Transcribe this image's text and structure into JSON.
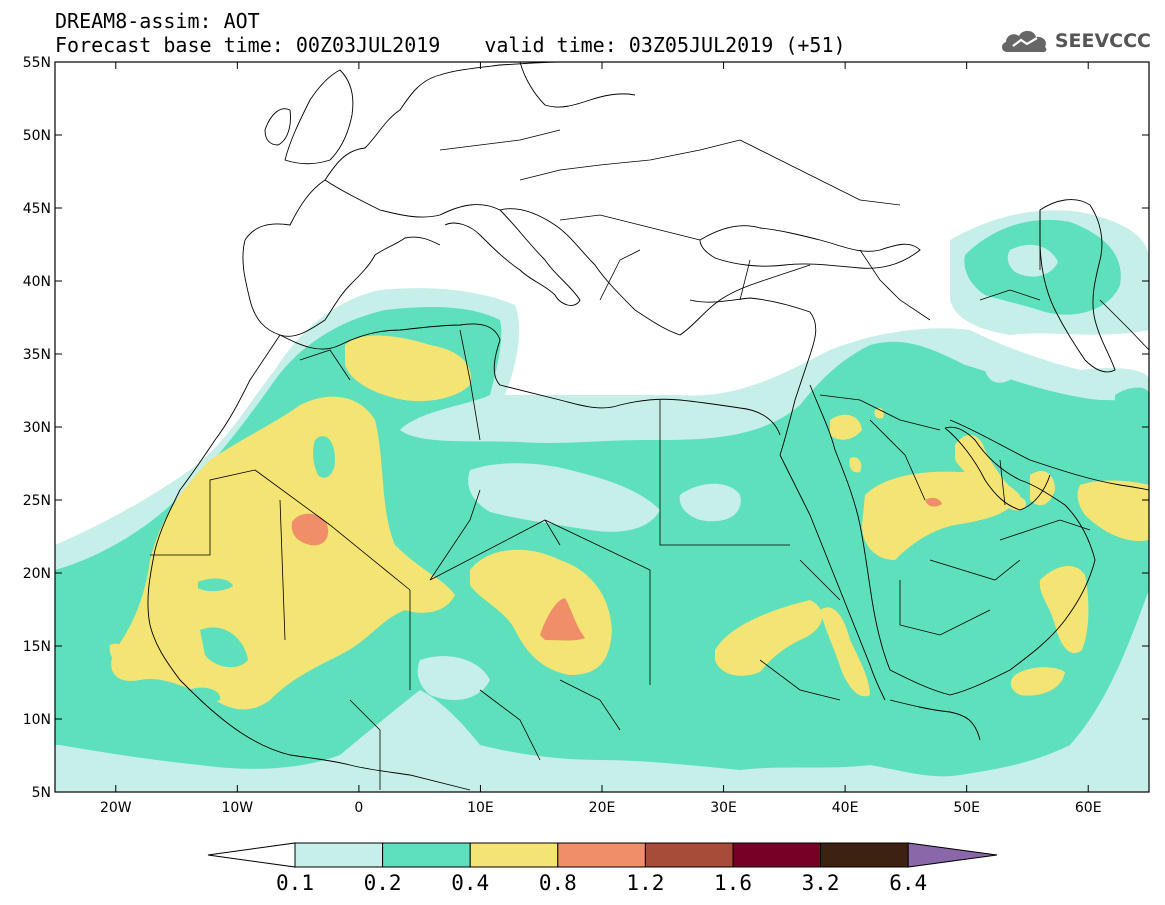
{
  "header": {
    "title_line1": "DREAM8-assim: AOT",
    "base_time": "Forecast base time: 00Z03JUL2019",
    "valid_time": "valid time: 03Z05JUL2019 (+51)",
    "logo_text": "SEEVCCC",
    "logo_icon": "cloud-icon"
  },
  "map": {
    "lon_range": [
      -25,
      65
    ],
    "lat_range": [
      5,
      55
    ],
    "lon_ticks": [
      {
        "value": -20,
        "label": "20W"
      },
      {
        "value": -10,
        "label": "10W"
      },
      {
        "value": 0,
        "label": "0"
      },
      {
        "value": 10,
        "label": "10E"
      },
      {
        "value": 20,
        "label": "20E"
      },
      {
        "value": 30,
        "label": "30E"
      },
      {
        "value": 40,
        "label": "40E"
      },
      {
        "value": 50,
        "label": "50E"
      },
      {
        "value": 60,
        "label": "60E"
      }
    ],
    "lat_ticks": [
      {
        "value": 55,
        "label": "55N"
      },
      {
        "value": 50,
        "label": "50N"
      },
      {
        "value": 45,
        "label": "45N"
      },
      {
        "value": 40,
        "label": "40N"
      },
      {
        "value": 35,
        "label": "35N"
      },
      {
        "value": 30,
        "label": "30N"
      },
      {
        "value": 25,
        "label": "25N"
      },
      {
        "value": 20,
        "label": "20N"
      },
      {
        "value": 15,
        "label": "15N"
      },
      {
        "value": 10,
        "label": "10N"
      },
      {
        "value": 5,
        "label": "5N"
      }
    ]
  },
  "colorbar": {
    "labels": [
      "0.1",
      "0.2",
      "0.4",
      "0.8",
      "1.2",
      "1.6",
      "3.2",
      "6.4"
    ],
    "colors": [
      "#ffffff",
      "#c6efe9",
      "#5ee0bd",
      "#f4e473",
      "#ef8e68",
      "#a84c3a",
      "#760026",
      "#3d2212",
      "#8a67a8"
    ]
  }
}
